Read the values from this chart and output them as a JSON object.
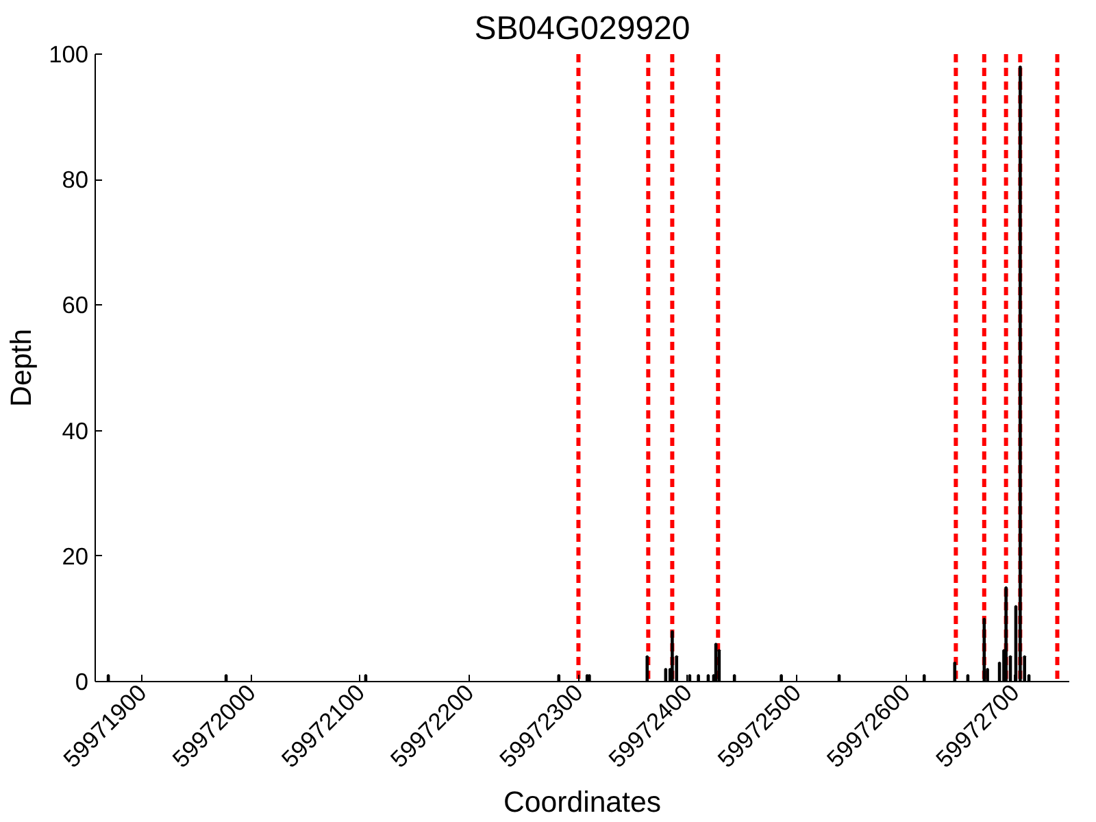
{
  "chart_data": {
    "type": "bar",
    "title": "SB04G029920",
    "xlabel": "Coordinates",
    "ylabel": "Depth",
    "x": [
      59971869,
      59971977,
      59972105,
      59972282,
      59972308,
      59972310,
      59972363,
      59972380,
      59972384,
      59972386,
      59972390,
      59972402,
      59972410,
      59972419,
      59972424,
      59972426,
      59972429,
      59972443,
      59972486,
      59972539,
      59972617,
      59972645,
      59972657,
      59972672,
      59972675,
      59972686,
      59972690,
      59972692,
      59972696,
      59972701,
      59972705,
      59972709,
      59972713
    ],
    "series": [
      {
        "color": "#000000",
        "values": [
          1,
          1,
          1,
          1,
          1,
          1,
          4,
          2,
          2,
          8,
          4,
          1,
          1,
          1,
          1,
          6,
          5,
          1,
          1,
          1,
          1,
          3,
          1,
          10,
          2,
          3,
          5,
          15,
          4,
          12,
          98,
          4,
          1
        ]
      }
    ],
    "xlim": [
      59971857,
      59972750
    ],
    "ylim": [
      0,
      100
    ],
    "xticks": [
      59971900,
      59972000,
      59972100,
      59972200,
      59972300,
      59972400,
      59972500,
      59972600,
      59972700
    ],
    "yticks": [
      0,
      20,
      40,
      60,
      80,
      100
    ],
    "ref_lines": [
      {
        "axis": "x",
        "value": 59972300,
        "color": "#ff0000",
        "line_style": "dashed"
      },
      {
        "axis": "x",
        "value": 59972364,
        "color": "#ff0000",
        "line_style": "dashed"
      },
      {
        "axis": "x",
        "value": 59972386,
        "color": "#ff0000",
        "line_style": "dashed"
      },
      {
        "axis": "x",
        "value": 59972428,
        "color": "#ff0000",
        "line_style": "dashed"
      },
      {
        "axis": "x",
        "value": 59972646,
        "color": "#ff0000",
        "line_style": "dashed"
      },
      {
        "axis": "x",
        "value": 59972672,
        "color": "#ff0000",
        "line_style": "dashed"
      },
      {
        "axis": "x",
        "value": 59972692,
        "color": "#ff0000",
        "line_style": "dashed"
      },
      {
        "axis": "x",
        "value": 59972705,
        "color": "#ff0000",
        "line_style": "dashed"
      },
      {
        "axis": "x",
        "value": 59972739,
        "color": "#ff0000",
        "line_style": "dashed"
      }
    ]
  }
}
